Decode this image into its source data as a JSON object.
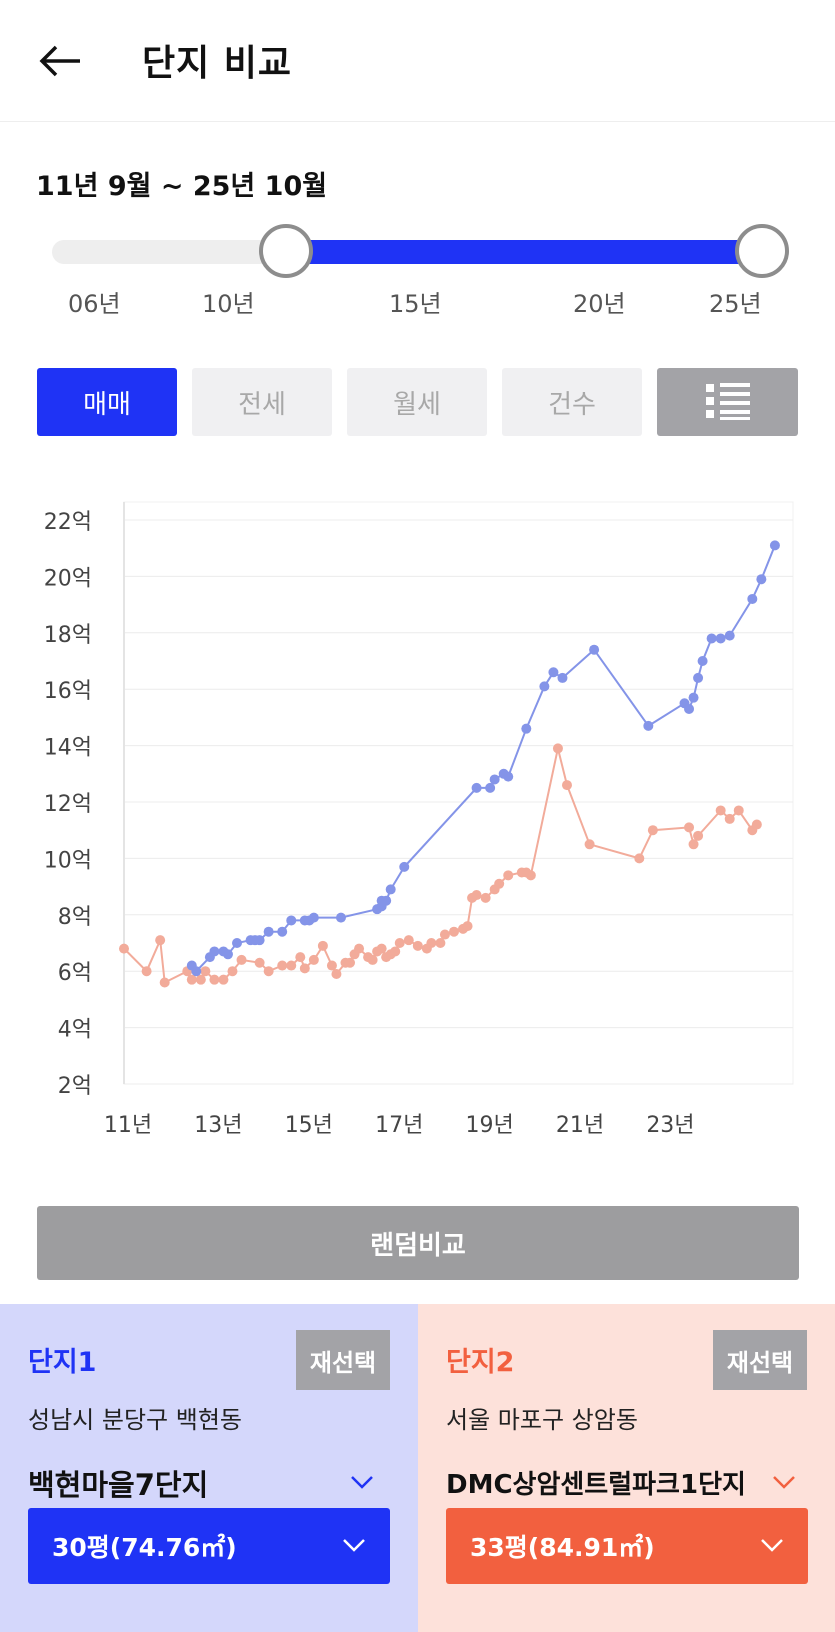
{
  "header": {
    "title": "단지 비교"
  },
  "period": {
    "label": "11년 9월 ~ 25년 10월"
  },
  "slider": {
    "ticks": [
      "06년",
      "10년",
      "15년",
      "20년",
      "25년"
    ],
    "selected_start": "11년 9월",
    "selected_end": "25년 10월"
  },
  "tabs": [
    {
      "label": "매매",
      "active": true
    },
    {
      "label": "전세",
      "active": false
    },
    {
      "label": "월세",
      "active": false
    },
    {
      "label": "건수",
      "active": false
    }
  ],
  "colors": {
    "accent_blue": "#1f33f5",
    "series1": "#8494e8",
    "series2": "#f2ab9a",
    "accent_orange": "#f2603f"
  },
  "chart_data": {
    "type": "line",
    "y_ticks": [
      "22억",
      "20억",
      "18억",
      "16억",
      "14억",
      "12억",
      "10억",
      "8억",
      "6억",
      "4억",
      "2억"
    ],
    "x_ticks": [
      "11년",
      "13년",
      "15년",
      "17년",
      "19년",
      "21년",
      "23년"
    ],
    "ylim": [
      2,
      22
    ],
    "xlim": [
      2011.0,
      2025.8
    ],
    "grid": true,
    "series": [
      {
        "color": "#8494e8",
        "points": [
          [
            2012.5,
            6.2
          ],
          [
            2012.6,
            6.0
          ],
          [
            2012.9,
            6.5
          ],
          [
            2013.0,
            6.7
          ],
          [
            2013.2,
            6.7
          ],
          [
            2013.3,
            6.6
          ],
          [
            2013.5,
            7.0
          ],
          [
            2013.8,
            7.1
          ],
          [
            2013.9,
            7.1
          ],
          [
            2014.0,
            7.1
          ],
          [
            2014.2,
            7.4
          ],
          [
            2014.5,
            7.4
          ],
          [
            2014.7,
            7.8
          ],
          [
            2015.0,
            7.8
          ],
          [
            2015.1,
            7.8
          ],
          [
            2015.2,
            7.9
          ],
          [
            2015.8,
            7.9
          ],
          [
            2016.6,
            8.2
          ],
          [
            2016.7,
            8.3
          ],
          [
            2016.7,
            8.5
          ],
          [
            2016.8,
            8.5
          ],
          [
            2016.9,
            8.9
          ],
          [
            2017.2,
            9.7
          ],
          [
            2018.8,
            12.5
          ],
          [
            2019.1,
            12.5
          ],
          [
            2019.2,
            12.8
          ],
          [
            2019.4,
            13.0
          ],
          [
            2019.5,
            12.9
          ],
          [
            2019.9,
            14.6
          ],
          [
            2020.3,
            16.1
          ],
          [
            2020.5,
            16.6
          ],
          [
            2020.7,
            16.4
          ],
          [
            2021.4,
            17.4
          ],
          [
            2022.6,
            14.7
          ],
          [
            2023.4,
            15.5
          ],
          [
            2023.5,
            15.3
          ],
          [
            2023.6,
            15.7
          ],
          [
            2023.7,
            16.4
          ],
          [
            2023.8,
            17.0
          ],
          [
            2024.0,
            17.8
          ],
          [
            2024.2,
            17.8
          ],
          [
            2024.4,
            17.9
          ],
          [
            2024.9,
            19.2
          ],
          [
            2025.1,
            19.9
          ],
          [
            2025.4,
            21.1
          ]
        ]
      },
      {
        "color": "#f2ab9a",
        "points": [
          [
            2011.0,
            6.8
          ],
          [
            2011.5,
            6.0
          ],
          [
            2011.8,
            7.1
          ],
          [
            2011.9,
            5.6
          ],
          [
            2012.4,
            6.0
          ],
          [
            2012.5,
            5.7
          ],
          [
            2012.7,
            5.7
          ],
          [
            2012.8,
            6.0
          ],
          [
            2013.0,
            5.7
          ],
          [
            2013.2,
            5.7
          ],
          [
            2013.4,
            6.0
          ],
          [
            2013.6,
            6.4
          ],
          [
            2014.0,
            6.3
          ],
          [
            2014.2,
            6.0
          ],
          [
            2014.5,
            6.2
          ],
          [
            2014.7,
            6.2
          ],
          [
            2014.9,
            6.5
          ],
          [
            2015.0,
            6.1
          ],
          [
            2015.2,
            6.4
          ],
          [
            2015.4,
            6.9
          ],
          [
            2015.6,
            6.2
          ],
          [
            2015.7,
            5.9
          ],
          [
            2015.9,
            6.3
          ],
          [
            2016.0,
            6.3
          ],
          [
            2016.1,
            6.6
          ],
          [
            2016.2,
            6.8
          ],
          [
            2016.4,
            6.5
          ],
          [
            2016.5,
            6.4
          ],
          [
            2016.6,
            6.7
          ],
          [
            2016.7,
            6.8
          ],
          [
            2016.8,
            6.5
          ],
          [
            2016.9,
            6.6
          ],
          [
            2017.0,
            6.7
          ],
          [
            2017.1,
            7.0
          ],
          [
            2017.3,
            7.1
          ],
          [
            2017.5,
            6.9
          ],
          [
            2017.7,
            6.8
          ],
          [
            2017.8,
            7.0
          ],
          [
            2018.0,
            7.0
          ],
          [
            2018.1,
            7.3
          ],
          [
            2018.3,
            7.4
          ],
          [
            2018.5,
            7.5
          ],
          [
            2018.6,
            7.6
          ],
          [
            2018.7,
            8.6
          ],
          [
            2018.8,
            8.7
          ],
          [
            2019.0,
            8.6
          ],
          [
            2019.2,
            8.9
          ],
          [
            2019.3,
            9.1
          ],
          [
            2019.5,
            9.4
          ],
          [
            2019.8,
            9.5
          ],
          [
            2019.9,
            9.5
          ],
          [
            2020.0,
            9.4
          ],
          [
            2020.6,
            13.9
          ],
          [
            2020.8,
            12.6
          ],
          [
            2021.3,
            10.5
          ],
          [
            2022.4,
            10.0
          ],
          [
            2022.7,
            11.0
          ],
          [
            2023.5,
            11.1
          ],
          [
            2023.6,
            10.5
          ],
          [
            2023.7,
            10.8
          ],
          [
            2024.2,
            11.7
          ],
          [
            2024.4,
            11.4
          ],
          [
            2024.6,
            11.7
          ],
          [
            2024.9,
            11.0
          ],
          [
            2025.0,
            11.2
          ]
        ]
      }
    ]
  },
  "random_compare": {
    "label": "랜덤비교"
  },
  "complex1": {
    "label": "단지1",
    "reselect": "재선택",
    "location": "성남시 분당구 백현동",
    "name": "백현마을7단지",
    "size": "30평(74.76㎡)"
  },
  "complex2": {
    "label": "단지2",
    "reselect": "재선택",
    "location": "서울 마포구 상암동",
    "name": "DMC상암센트럴파크1단지",
    "size": "33평(84.91㎡)"
  }
}
